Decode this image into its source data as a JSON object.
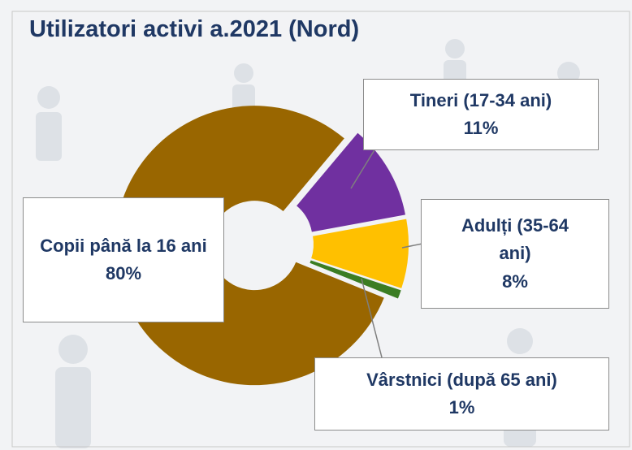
{
  "chart_data": {
    "type": "doughnut",
    "title": "Utilizatori activi a.2021 (Nord)",
    "categories": [
      "Tineri (17-34 ani)",
      "Adulți (35-64 ani)",
      "Vârstnici (după 65 ani)",
      "Copii până la 16 ani"
    ],
    "values": [
      11,
      8,
      1,
      80
    ],
    "value_labels": [
      "11%",
      "8%",
      "1%",
      "80%"
    ],
    "colors": [
      "#7030a0",
      "#ffc000",
      "#3b7d23",
      "#996600"
    ]
  }
}
